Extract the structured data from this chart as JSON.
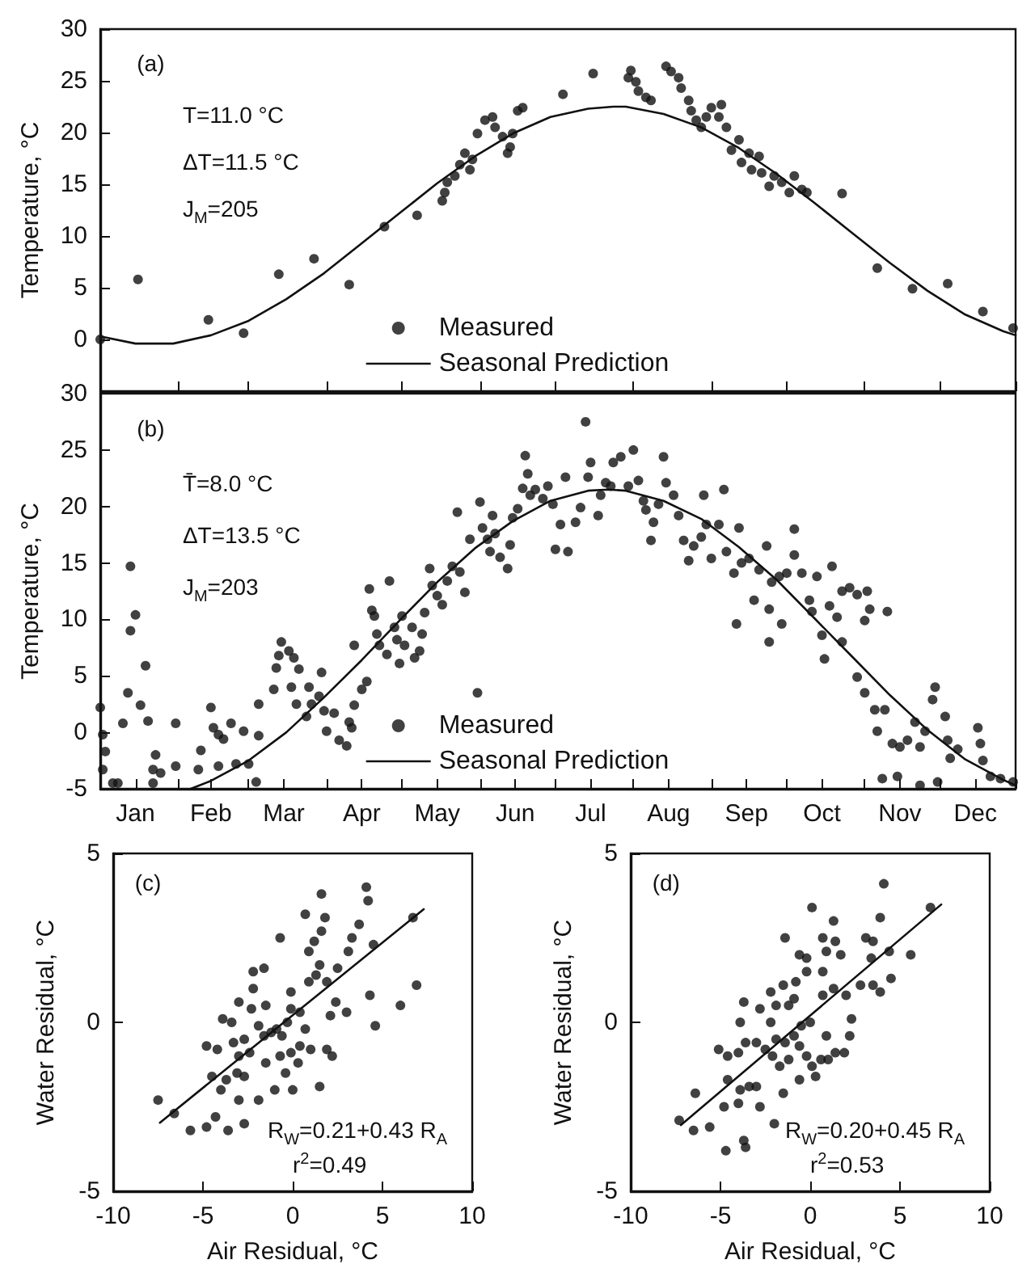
{
  "chart_data": [
    {
      "type": "scatter",
      "ylabel": "Temperature, °C",
      "xlim": [
        "--01-01",
        "--12-31"
      ],
      "ylim": [
        -5,
        30
      ],
      "xticks": [
        {
          "value": "--01-01",
          "label": null
        },
        {
          "value": "--02-01",
          "label": null
        },
        {
          "value": "--03-01",
          "label": null
        },
        {
          "value": "--04-01",
          "label": null
        },
        {
          "value": "--05-01",
          "label": null
        },
        {
          "value": "--06-01",
          "label": null
        },
        {
          "value": "--07-01",
          "label": null
        },
        {
          "value": "--08-01",
          "label": null
        },
        {
          "value": "--09-01",
          "label": null
        },
        {
          "value": "--10-01",
          "label": null
        },
        {
          "value": "--11-01",
          "label": null
        },
        {
          "value": "--12-01",
          "label": null
        },
        {
          "value": "--12-31",
          "label": null
        }
      ],
      "yticks": [
        0,
        5,
        10,
        15,
        20,
        25,
        30
      ],
      "tick_labels": "y",
      "grid": false,
      "legend": "bottom",
      "annotations": [
        "(a)",
        "T=11.0 °C",
        "ΔT=11.5 °C",
        "J$_{M}$=205"
      ],
      "series": [
        {
          "name": "Measured",
          "type": "scatter",
          "marker": "circle",
          "color": "#111111",
          "x": [
            "--01-01",
            "--01-16",
            "--02-13",
            "--02-27",
            "--03-13",
            "--03-27",
            "--04-10",
            "--04-24",
            "--05-07",
            "--05-17",
            "--05-18",
            "--05-19",
            "--05-22",
            "--05-24",
            "--05-26",
            "--05-28",
            "--05-29",
            "--05-31",
            "--06-03",
            "--06-06",
            "--06-07",
            "--06-10",
            "--06-12",
            "--06-13",
            "--06-14",
            "--06-16",
            "--06-18",
            "--07-04",
            "--07-16",
            "--07-30",
            "--07-31",
            "--08-02",
            "--08-03",
            "--08-06",
            "--08-08",
            "--08-14",
            "--08-16",
            "--08-19",
            "--08-20",
            "--08-23",
            "--08-24",
            "--08-26",
            "--08-28",
            "--08-30",
            "--09-01",
            "--09-04",
            "--09-05",
            "--09-07",
            "--09-09",
            "--09-12",
            "--09-13",
            "--09-16",
            "--09-17",
            "--09-20",
            "--09-21",
            "--09-24",
            "--09-26",
            "--09-29",
            "--10-02",
            "--10-04",
            "--10-07",
            "--10-09",
            "--10-23",
            "--11-06",
            "--11-20",
            "--12-04",
            "--12-18",
            "--12-30"
          ],
          "values": [
            0,
            5.8,
            1.9,
            0.6,
            6.3,
            7.8,
            5.3,
            10.9,
            12.0,
            13.4,
            14.2,
            15.2,
            15.8,
            16.9,
            18.0,
            16.4,
            17.4,
            19.9,
            21.2,
            21.5,
            20.5,
            19.6,
            18.0,
            18.6,
            19.9,
            22.1,
            22.4,
            23.7,
            25.7,
            25.3,
            26.0,
            24.9,
            24.0,
            23.4,
            23.1,
            26.4,
            25.9,
            25.3,
            24.3,
            23.1,
            22.1,
            21.2,
            20.5,
            21.5,
            22.4,
            21.5,
            22.7,
            20.5,
            18.3,
            19.3,
            17.1,
            18.0,
            16.4,
            17.7,
            16.1,
            14.8,
            15.8,
            15.2,
            14.2,
            15.8,
            14.5,
            14.2,
            14.1,
            6.9,
            4.9,
            5.4,
            2.7,
            1.1
          ]
        },
        {
          "name": "Seasonal Prediction",
          "type": "line",
          "marker": "none",
          "color": "#111111",
          "line_style": "solid",
          "x": [
            "--01-01",
            "--01-15",
            "--01-30",
            "--02-14",
            "--03-01",
            "--03-16",
            "--03-31",
            "--04-15",
            "--04-30",
            "--05-15",
            "--05-30",
            "--06-14",
            "--06-29",
            "--07-14",
            "--07-24",
            "--07-29",
            "--08-13",
            "--08-28",
            "--09-12",
            "--09-27",
            "--10-12",
            "--10-27",
            "--11-11",
            "--11-26",
            "--12-11",
            "--12-26",
            "--12-31"
          ],
          "values": [
            0.3,
            -0.4,
            -0.4,
            0.4,
            1.8,
            3.9,
            6.4,
            9.3,
            12.2,
            15.1,
            17.7,
            19.9,
            21.5,
            22.3,
            22.5,
            22.5,
            21.8,
            20.5,
            18.5,
            16.0,
            13.2,
            10.3,
            7.4,
            4.7,
            2.4,
            0.8,
            0.4
          ]
        }
      ]
    },
    {
      "type": "scatter",
      "ylabel": "Temperature, °C",
      "xlim": [
        "--01-01",
        "--12-31"
      ],
      "ylim": [
        -5,
        30
      ],
      "xticks": [
        {
          "value": "--01-01",
          "label": null
        },
        {
          "value": "--01-15",
          "label": "Jan"
        },
        {
          "value": "--02-01",
          "label": null
        },
        {
          "value": "--02-14",
          "label": "Feb"
        },
        {
          "value": "--03-01",
          "label": null
        },
        {
          "value": "--03-15",
          "label": "Mar"
        },
        {
          "value": "--04-01",
          "label": null
        },
        {
          "value": "--04-15",
          "label": "Apr"
        },
        {
          "value": "--05-01",
          "label": null
        },
        {
          "value": "--05-15",
          "label": "May"
        },
        {
          "value": "--06-01",
          "label": null
        },
        {
          "value": "--06-15",
          "label": "Jun"
        },
        {
          "value": "--07-01",
          "label": null
        },
        {
          "value": "--07-15",
          "label": "Jul"
        },
        {
          "value": "--08-01",
          "label": null
        },
        {
          "value": "--08-15",
          "label": "Aug"
        },
        {
          "value": "--09-01",
          "label": null
        },
        {
          "value": "--09-15",
          "label": "Sep"
        },
        {
          "value": "--10-01",
          "label": null
        },
        {
          "value": "--10-15",
          "label": "Oct"
        },
        {
          "value": "--11-01",
          "label": null
        },
        {
          "value": "--11-15",
          "label": "Nov"
        },
        {
          "value": "--12-01",
          "label": null
        },
        {
          "value": "--12-15",
          "label": "Dec"
        },
        {
          "value": "--12-31",
          "label": null
        }
      ],
      "yticks": [
        -5,
        0,
        5,
        10,
        15,
        20,
        25,
        30
      ],
      "grid": false,
      "legend": "bottom",
      "annotations": [
        "(b)",
        "T̄=8.0 °C",
        "ΔT=13.5 °C",
        "J$_{M}$=203"
      ],
      "series": [
        {
          "name": "Measured",
          "type": "scatter",
          "marker": "circle",
          "color": "#111111",
          "x": [
            "--01-01",
            "--01-02",
            "--01-03",
            "--01-02",
            "--01-06",
            "--01-08",
            "--01-13",
            "--01-13",
            "--01-15",
            "--01-12",
            "--01-17",
            "--01-19",
            "--01-10",
            "--01-20",
            "--01-23",
            "--01-22",
            "--01-25",
            "--01-22",
            "--01-31",
            "--01-31",
            "--02-09",
            "--02-10",
            "--02-14",
            "--02-15",
            "--02-17",
            "--02-19",
            "--02-22",
            "--02-17",
            "--02-24",
            "--02-27",
            "--03-05",
            "--03-04",
            "--03-01",
            "--03-05",
            "--03-11",
            "--03-12",
            "--03-13",
            "--03-14",
            "--03-17",
            "--03-18",
            "--03-19",
            "--03-21",
            "--03-20",
            "--03-24",
            "--03-25",
            "--03-26",
            "--03-29",
            "--03-30",
            "--03-31",
            "--04-01",
            "--04-04",
            "--04-06",
            "--04-10",
            "--04-11",
            "--04-09",
            "--04-12",
            "--04-12",
            "--04-15",
            "--04-17",
            "--04-18",
            "--04-19",
            "--04-20",
            "--04-21",
            "--04-22",
            "--04-25",
            "--04-26",
            "--04-28",
            "--04-29",
            "--04-30",
            "--05-01",
            "--05-02",
            "--05-05",
            "--05-06",
            "--05-08",
            "--05-09",
            "--05-10",
            "--05-12",
            "--05-13",
            "--05-15",
            "--05-17",
            "--05-19",
            "--05-21",
            "--05-23",
            "--05-24",
            "--05-26",
            "--05-28",
            "--05-31",
            "--06-01",
            "--06-02",
            "--06-04",
            "--06-05",
            "--06-06",
            "--06-07",
            "--06-09",
            "--06-12",
            "--06-13",
            "--06-14",
            "--06-16",
            "--06-18",
            "--06-19",
            "--06-20",
            "--06-21",
            "--06-23",
            "--06-26",
            "--06-28",
            "--06-30",
            "--07-01",
            "--07-06",
            "--07-03",
            "--07-05",
            "--07-09",
            "--07-11",
            "--07-13",
            "--07-15",
            "--07-14",
            "--07-18",
            "--07-19",
            "--07-21",
            "--07-23",
            "--07-24",
            "--07-27",
            "--07-30",
            "--08-01",
            "--08-03",
            "--08-05",
            "--08-06",
            "--08-08",
            "--08-09",
            "--08-11",
            "--08-13",
            "--08-14",
            "--08-17",
            "--08-19",
            "--08-21",
            "--08-23",
            "--08-25",
            "--08-28",
            "--08-29",
            "--08-30",
            "--09-01",
            "--09-04",
            "--09-06",
            "--09-07",
            "--09-10",
            "--09-12",
            "--09-13",
            "--09-16",
            "--09-18",
            "--09-20",
            "--09-23",
            "--09-11",
            "--09-24",
            "--09-25",
            "--09-28",
            "--09-29",
            "--09-24",
            "--10-01",
            "--10-04",
            "--10-04",
            "--10-07",
            "--10-10",
            "--10-11",
            "--10-13",
            "--10-15",
            "--10-19",
            "--10-18",
            "--10-21",
            "--10-23",
            "--10-16",
            "--10-23",
            "--10-26",
            "--10-29",
            "--11-02",
            "--11-03",
            "--11-01",
            "--11-10",
            "--10-29",
            "--11-01",
            "--11-05",
            "--11-06",
            "--11-09",
            "--11-12",
            "--11-08",
            "--11-14",
            "--11-15",
            "--11-18",
            "--11-21",
            "--11-23",
            "--11-25",
            "--11-23",
            "--11-29",
            "--11-28",
            "--11-30",
            "--12-03",
            "--12-04",
            "--12-05",
            "--12-08",
            "--12-16",
            "--12-17",
            "--12-18",
            "--12-21",
            "--12-25",
            "--12-30"
          ],
          "values": [
            2.2,
            -0.2,
            -1.7,
            -3.3,
            -4.5,
            -4.5,
            14.7,
            9.0,
            10.4,
            3.5,
            2.4,
            5.9,
            0.8,
            1.0,
            -2.0,
            -3.3,
            -3.6,
            -4.5,
            0.8,
            -3.0,
            -3.3,
            -1.6,
            2.2,
            0.4,
            -0.2,
            -0.6,
            0.8,
            -3.0,
            -2.8,
            0.1,
            -0.3,
            -4.4,
            -2.8,
            2.5,
            3.8,
            5.7,
            6.8,
            8.0,
            7.2,
            4.0,
            6.6,
            5.6,
            2.5,
            1.4,
            4.0,
            2.5,
            3.2,
            5.3,
            1.9,
            0.1,
            1.7,
            -0.7,
            0.9,
            0.4,
            -1.2,
            2.4,
            7.7,
            3.8,
            4.5,
            12.7,
            10.8,
            10.3,
            8.7,
            7.7,
            6.9,
            13.4,
            9.3,
            8.2,
            6.1,
            10.3,
            7.7,
            9.3,
            6.6,
            7.2,
            8.7,
            10.6,
            14.5,
            13.0,
            12.1,
            11.3,
            13.4,
            14.7,
            19.5,
            14.2,
            12.4,
            17.1,
            3.5,
            20.4,
            18.1,
            17.1,
            16.0,
            19.2,
            17.6,
            15.5,
            14.5,
            16.6,
            19.0,
            19.8,
            21.6,
            24.5,
            22.9,
            21.0,
            21.5,
            20.7,
            21.8,
            20.2,
            16.2,
            16.0,
            18.4,
            22.6,
            18.6,
            19.9,
            27.5,
            23.9,
            22.6,
            19.2,
            21.0,
            22.1,
            21.8,
            23.9,
            24.4,
            21.8,
            25.0,
            22.3,
            20.5,
            19.7,
            17.0,
            18.6,
            20.2,
            24.4,
            22.1,
            21.0,
            19.2,
            17.0,
            15.2,
            16.5,
            17.3,
            21.0,
            18.4,
            15.4,
            18.4,
            21.5,
            16.0,
            14.1,
            18.1,
            15.0,
            15.4,
            11.7,
            14.4,
            16.5,
            9.6,
            10.9,
            13.3,
            13.8,
            9.6,
            8.0,
            14.1,
            18.0,
            15.7,
            14.1,
            11.7,
            10.7,
            13.8,
            8.6,
            14.7,
            11.2,
            10.2,
            8.0,
            6.5,
            12.5,
            12.8,
            12.2,
            12.5,
            10.9,
            9.9,
            10.7,
            4.9,
            3.5,
            2.0,
            0.1,
            2.0,
            -1.0,
            -4.1,
            -3.9,
            -1.3,
            -0.7,
            0.9,
            -1.3,
            0.1,
            -4.7,
            4.0,
            2.9,
            -4.4,
            1.4,
            -0.7,
            -2.3,
            -1.5,
            0.4,
            -1.0,
            -2.5,
            -3.9,
            -4.1,
            -4.4
          ]
        },
        {
          "name": "Seasonal Prediction",
          "type": "line",
          "marker": "none",
          "color": "#111111",
          "line_style": "solid",
          "x": [
            "--02-06",
            "--02-14",
            "--03-01",
            "--03-16",
            "--03-31",
            "--04-15",
            "--04-30",
            "--05-15",
            "--05-30",
            "--06-14",
            "--06-29",
            "--07-14",
            "--07-22",
            "--07-29",
            "--08-13",
            "--08-28",
            "--09-12",
            "--09-27",
            "--10-12",
            "--10-27",
            "--11-11",
            "--11-26",
            "--12-11",
            "--12-26",
            "--12-31"
          ],
          "values": [
            -5.0,
            -4.3,
            -2.5,
            0.0,
            3.1,
            6.4,
            9.9,
            13.3,
            16.3,
            18.7,
            20.5,
            21.4,
            21.5,
            21.4,
            20.5,
            18.9,
            16.4,
            13.5,
            10.1,
            6.7,
            3.3,
            0.2,
            -2.4,
            -4.2,
            -4.7
          ]
        }
      ]
    },
    {
      "type": "scatter",
      "xlabel": "Air Residual, °C",
      "ylabel": "Water Residual, °C",
      "xlim": [
        -10,
        10
      ],
      "ylim": [
        -5,
        5
      ],
      "xticks": [
        -10,
        -5,
        0,
        5,
        10
      ],
      "yticks": [
        -5,
        0,
        5
      ],
      "grid": false,
      "annotations": [
        "(c)",
        "R$_{W}$=0.21+0.43 R$_{A}$",
        "r$^{2}$=0.49"
      ],
      "series": [
        {
          "type": "scatter",
          "marker": "circle",
          "color": "#111111",
          "x": [
            -7.5,
            -6.6,
            -5.7,
            -4.8,
            -4.3,
            -3.6,
            -2.7,
            -1.9,
            -3.0,
            -4.0,
            -4.5,
            -3.7,
            -3.1,
            -2.7,
            -4.8,
            -4.2,
            -3.3,
            -3.0,
            -2.7,
            -2.4,
            -3.9,
            -3.4,
            -3.0,
            -2.2,
            -2.3,
            -1.5,
            -1.9,
            -1.6,
            -1.2,
            -0.9,
            -0.6,
            -0.3,
            -0.1,
            -2.2,
            -1.6,
            -0.7,
            -0.1,
            -1.5,
            -0.7,
            -0.4,
            -1.0,
            0.0,
            0.3,
            -0.1,
            0.4,
            1.0,
            0.7,
            0.4,
            0.9,
            1.3,
            1.5,
            0.9,
            1.2,
            1.6,
            1.8,
            0.7,
            1.6,
            1.5,
            1.9,
            2.2,
            2.4,
            3.0,
            2.1,
            1.9,
            2.5,
            3.1,
            3.3,
            3.7,
            4.1,
            4.2,
            4.5,
            4.3,
            4.6,
            6.0,
            6.9,
            6.7
          ],
          "values": [
            -2.3,
            -2.7,
            -3.2,
            -3.1,
            -2.8,
            -3.2,
            -3.0,
            -2.3,
            -2.3,
            -2.0,
            -1.6,
            -1.7,
            -1.5,
            -1.6,
            -0.7,
            -0.8,
            -0.6,
            -1.0,
            -0.5,
            -0.9,
            0.1,
            0.0,
            0.6,
            1.0,
            0.4,
            0.5,
            -0.1,
            -0.4,
            -0.3,
            -0.2,
            -0.4,
            0.0,
            0.4,
            1.5,
            1.6,
            2.5,
            0.9,
            -1.2,
            -1.0,
            -1.5,
            -2.0,
            -2.0,
            -1.2,
            -0.9,
            -0.7,
            -0.8,
            -0.2,
            0.3,
            1.2,
            1.4,
            1.7,
            2.1,
            2.4,
            2.7,
            3.1,
            3.2,
            3.8,
            -1.9,
            -0.8,
            -1.0,
            0.6,
            0.3,
            0.2,
            1.2,
            1.6,
            2.1,
            2.5,
            2.9,
            4.0,
            3.6,
            2.3,
            0.8,
            -0.1,
            0.5,
            1.1,
            3.1
          ]
        },
        {
          "type": "line",
          "marker": "none",
          "color": "#111111",
          "line_style": "solid",
          "x": [
            -7.4,
            7.3
          ],
          "values": [
            -2.97,
            3.35
          ]
        }
      ]
    },
    {
      "type": "scatter",
      "xlabel": "Air Residual, °C",
      "ylabel": "Water Residual, °C",
      "xlim": [
        -10,
        10
      ],
      "ylim": [
        -5,
        5
      ],
      "xticks": [
        -10,
        -5,
        0,
        5,
        10
      ],
      "yticks": [
        -5,
        0,
        5
      ],
      "grid": false,
      "annotations": [
        "(d)",
        "R$_{W}$=0.20+0.45 R$_{A}$",
        "r$^{2}$=0.53"
      ],
      "series": [
        {
          "type": "scatter",
          "marker": "circle",
          "color": "#111111",
          "x": [
            -7.3,
            -6.5,
            -6.4,
            -5.6,
            -4.7,
            -3.7,
            -3.6,
            -4.8,
            -4.0,
            -2.8,
            -2.0,
            -1.5,
            -3.9,
            -3.4,
            -4.6,
            -3.0,
            -5.1,
            -4.6,
            -4.0,
            -3.6,
            -3.0,
            -2.5,
            -2.1,
            -1.7,
            -1.2,
            -1.9,
            -1.4,
            -0.9,
            -0.6,
            -0.2,
            0.1,
            0.6,
            1.0,
            1.4,
            1.9,
            -0.6,
            0.3,
            -0.5,
            0.0,
            -2.2,
            -3.9,
            -3.7,
            -2.8,
            -2.2,
            -1.9,
            -1.5,
            -1.2,
            -0.8,
            -0.9,
            -0.2,
            0.7,
            -0.2,
            0.9,
            0.7,
            1.3,
            1.4,
            1.7,
            0.1,
            -0.6,
            -1.4,
            0.7,
            1.3,
            2.0,
            2.3,
            2.2,
            0.9,
            2.8,
            3.5,
            3.9,
            4.5,
            3.1,
            3.5,
            3.9,
            4.1,
            4.4,
            3.4,
            5.6,
            6.7
          ],
          "values": [
            -2.9,
            -3.2,
            -2.1,
            -3.1,
            -3.8,
            -3.5,
            -3.7,
            -2.5,
            -2.4,
            -2.5,
            -3.0,
            -2.1,
            -2.0,
            -1.9,
            -1.7,
            -1.9,
            -0.8,
            -1.0,
            -0.9,
            -0.6,
            -0.6,
            -0.8,
            -1.0,
            -1.3,
            -1.1,
            -0.5,
            -0.6,
            -0.4,
            -0.7,
            -1.0,
            -1.3,
            -1.1,
            -1.1,
            -0.9,
            -0.9,
            -1.7,
            -1.6,
            -0.1,
            0.0,
            0.0,
            0.0,
            0.6,
            0.4,
            0.9,
            0.5,
            1.1,
            0.5,
            1.2,
            0.7,
            1.5,
            1.5,
            1.9,
            2.1,
            2.5,
            3.0,
            2.4,
            2.0,
            3.4,
            2.0,
            2.5,
            0.8,
            1.0,
            0.8,
            0.1,
            -0.4,
            -0.4,
            1.1,
            1.1,
            0.9,
            1.3,
            2.5,
            2.4,
            3.1,
            4.1,
            2.1,
            1.9,
            2.0,
            3.4
          ]
        },
        {
          "type": "line",
          "marker": "none",
          "color": "#111111",
          "line_style": "solid",
          "x": [
            -7.2,
            7.3
          ],
          "values": [
            -3.04,
            3.49
          ]
        }
      ]
    }
  ]
}
